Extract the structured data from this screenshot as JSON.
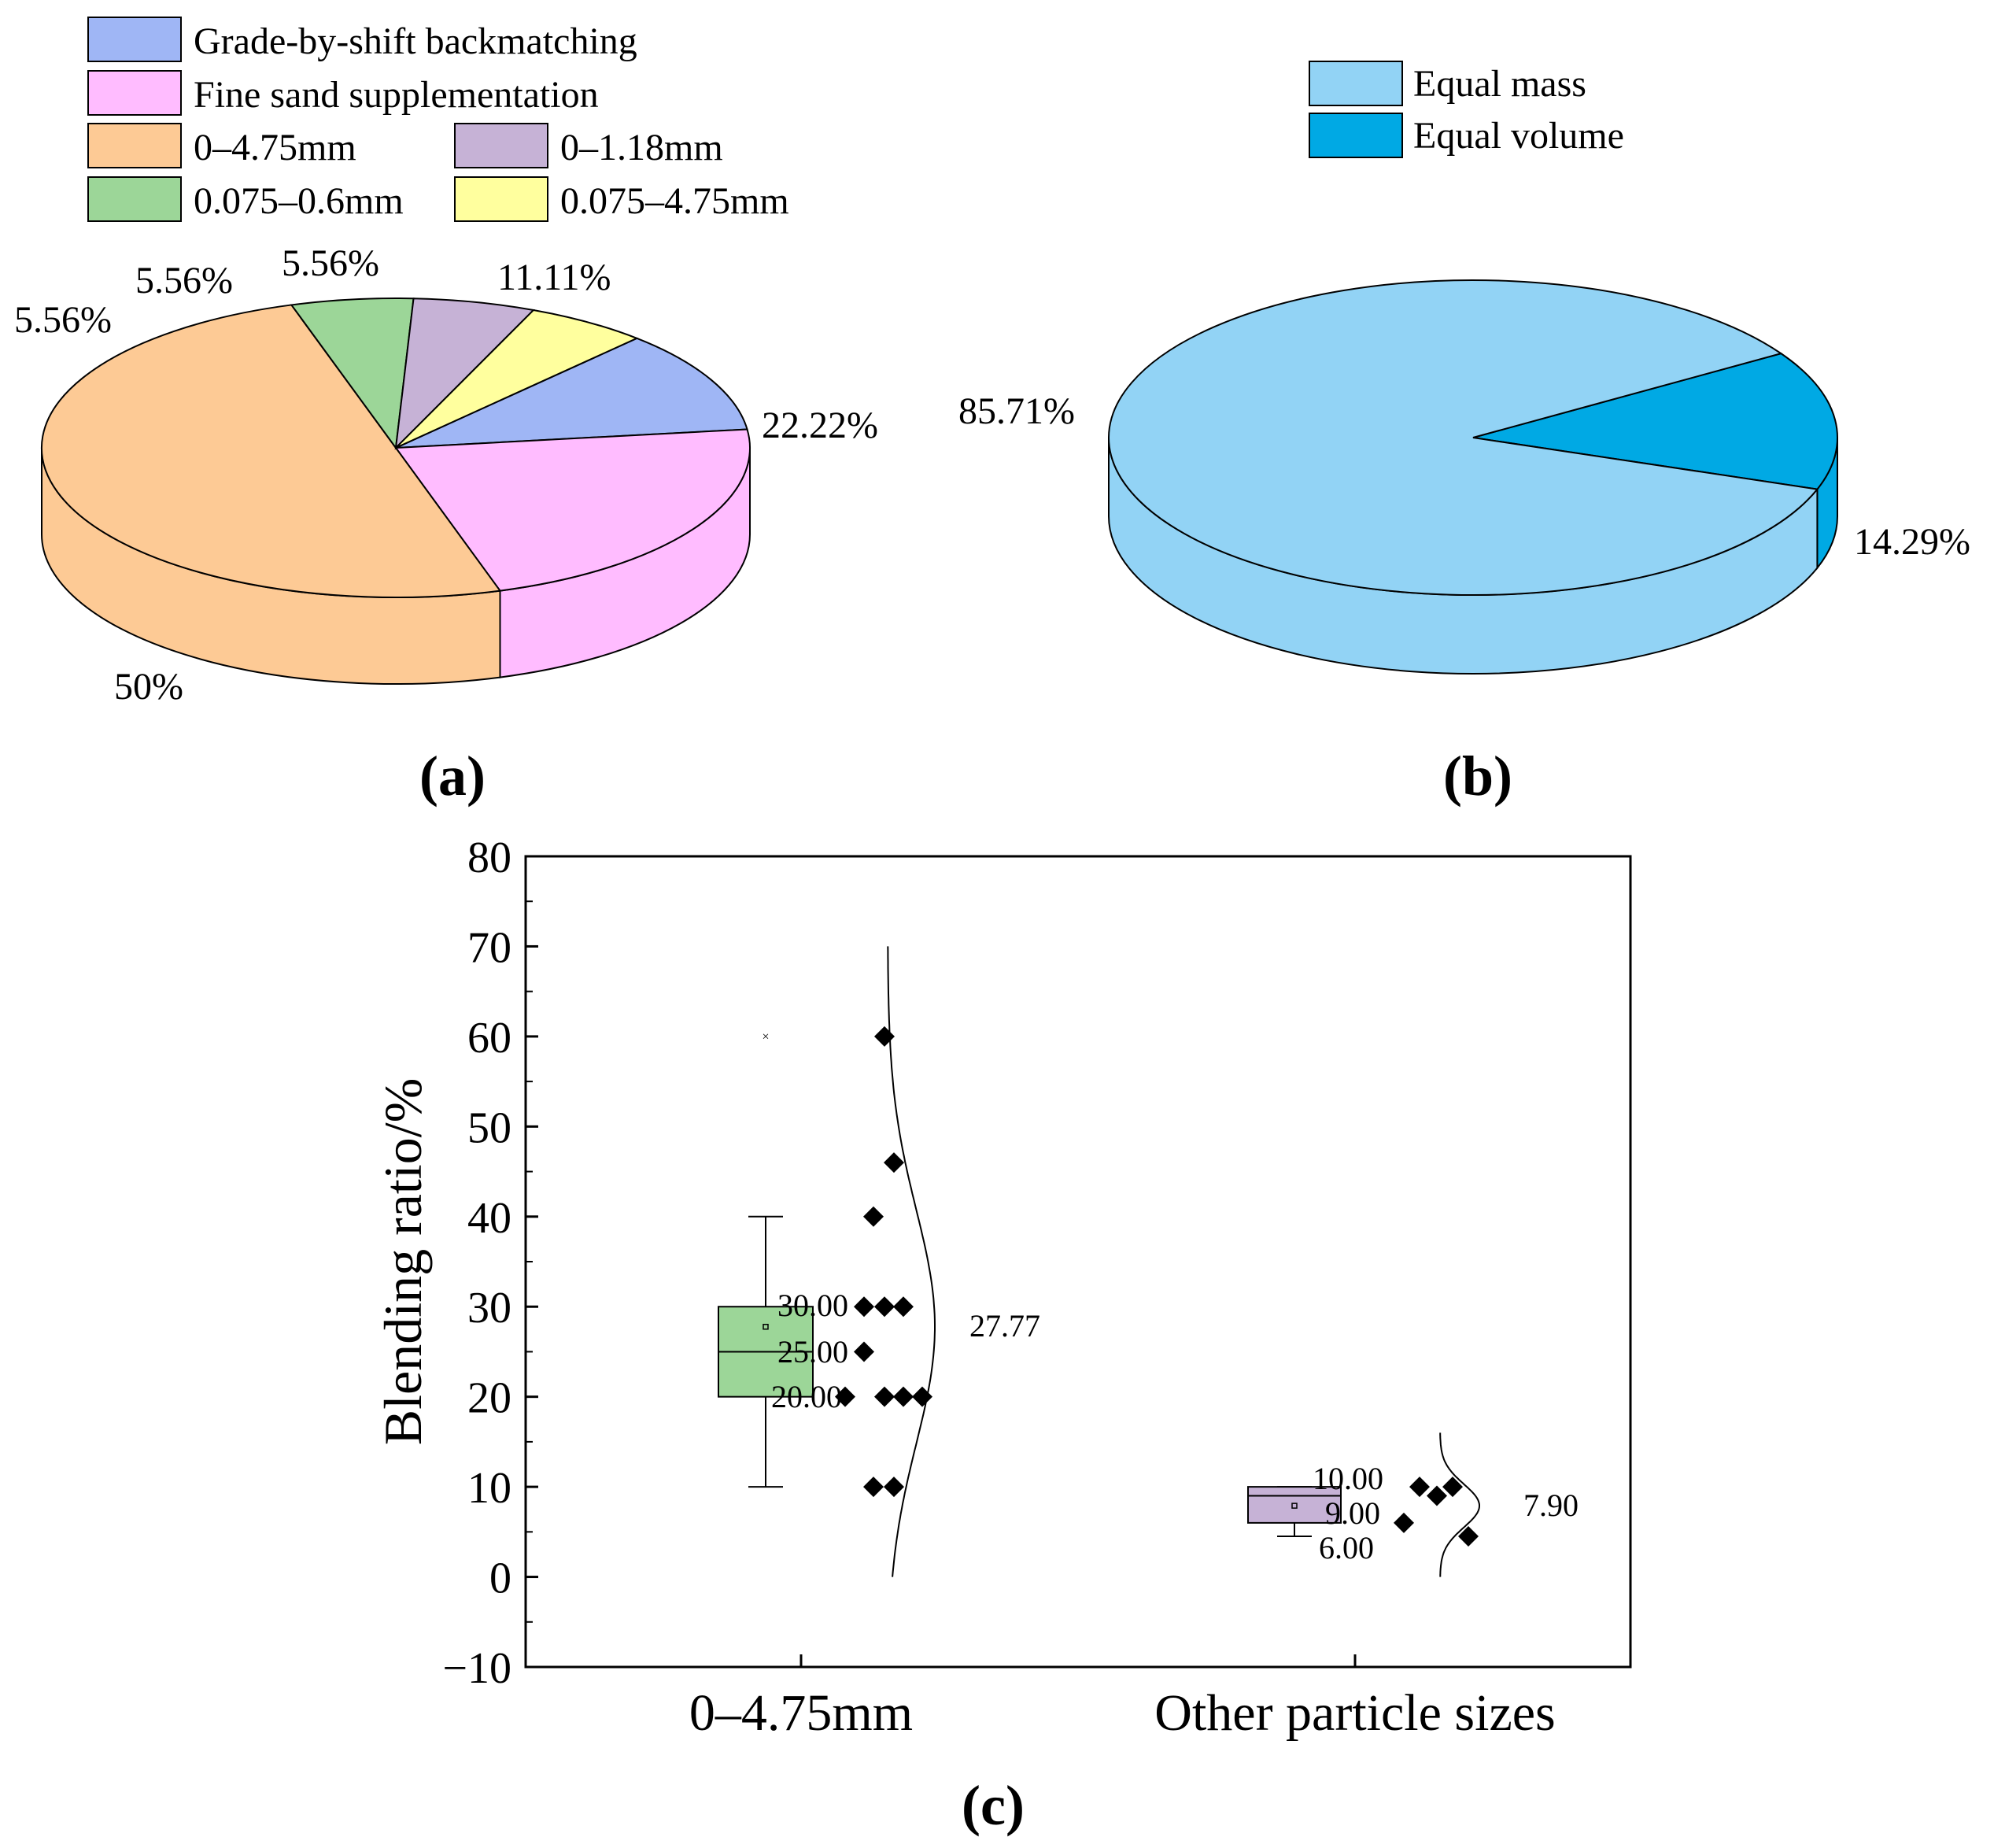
{
  "chart_data": [
    {
      "type": "pie",
      "panel_label": "(a)",
      "title": "",
      "colors": {
        "grade": "#9fb6f5",
        "fine": "#ffbcff",
        "p0475": "#fdca95",
        "p0118": "#c6b2d6",
        "p0075_06": "#9cd698",
        "p0075_475": "#ffff9e"
      },
      "legend": [
        {
          "key": "grade",
          "label": "Grade-by-shift backmatching"
        },
        {
          "key": "fine",
          "label": "Fine sand supplementation"
        },
        {
          "key": "p0475",
          "label": "0–4.75mm"
        },
        {
          "key": "p0118",
          "label": "0–1.18mm"
        },
        {
          "key": "p0075_06",
          "label": "0.075–0.6mm"
        },
        {
          "key": "p0075_475",
          "label": "0.075–4.75mm"
        }
      ],
      "slices": [
        {
          "key": "grade",
          "value": 11.11,
          "label": "11.11%"
        },
        {
          "key": "fine",
          "value": 22.22,
          "label": "22.22%"
        },
        {
          "key": "p0475",
          "value": 50,
          "label": "50%"
        },
        {
          "key": "p0075_06",
          "value": 5.56,
          "label": "5.56%"
        },
        {
          "key": "p0118",
          "value": 5.56,
          "label": "5.56%"
        },
        {
          "key": "p0075_475",
          "value": 5.56,
          "label": "5.56%"
        }
      ]
    },
    {
      "type": "pie",
      "panel_label": "(b)",
      "title": "",
      "colors": {
        "mass": "#92d3f5",
        "volume": "#00a9e4"
      },
      "legend": [
        {
          "key": "mass",
          "label": "Equal mass"
        },
        {
          "key": "volume",
          "label": "Equal volume"
        }
      ],
      "slices": [
        {
          "key": "volume",
          "value": 14.29,
          "label": "14.29%"
        },
        {
          "key": "mass",
          "value": 85.71,
          "label": "85.71%"
        }
      ]
    },
    {
      "type": "box",
      "panel_label": "(c)",
      "title": "",
      "xlabel": "",
      "ylabel": "Blending ratio/%",
      "ylim": [
        -10,
        80
      ],
      "yticks": [
        "−10",
        "0",
        "10",
        "20",
        "30",
        "40",
        "50",
        "60",
        "70",
        "80"
      ],
      "categories": [
        "0–4.75mm",
        "Other particle sizes"
      ],
      "boxes": [
        {
          "category": "0–4.75mm",
          "color": "#9cd698",
          "q1": 20,
          "median": 25,
          "q3": 30,
          "whisker_low": 10,
          "whisker_high": 40,
          "mean": 27.77,
          "outliers": [
            60
          ],
          "q1_label": "20.00",
          "median_label": "25.00",
          "q3_label": "30.00",
          "mean_label": "27.77",
          "points": [
            60,
            46,
            40,
            30,
            30,
            30,
            25,
            20,
            20,
            20,
            20,
            10,
            10
          ],
          "curve_sd": 13
        },
        {
          "category": "Other particle sizes",
          "color": "#c6b2d6",
          "q1": 6,
          "median": 9,
          "q3": 10,
          "whisker_low": 4.5,
          "whisker_high": 10,
          "mean": 7.9,
          "outliers": [],
          "q1_label": "6.00",
          "median_label": "9.00",
          "q3_label": "10.00",
          "mean_label": "7.90",
          "points": [
            10,
            9,
            10,
            6,
            4.5
          ],
          "curve_sd": 2.4
        }
      ]
    }
  ]
}
